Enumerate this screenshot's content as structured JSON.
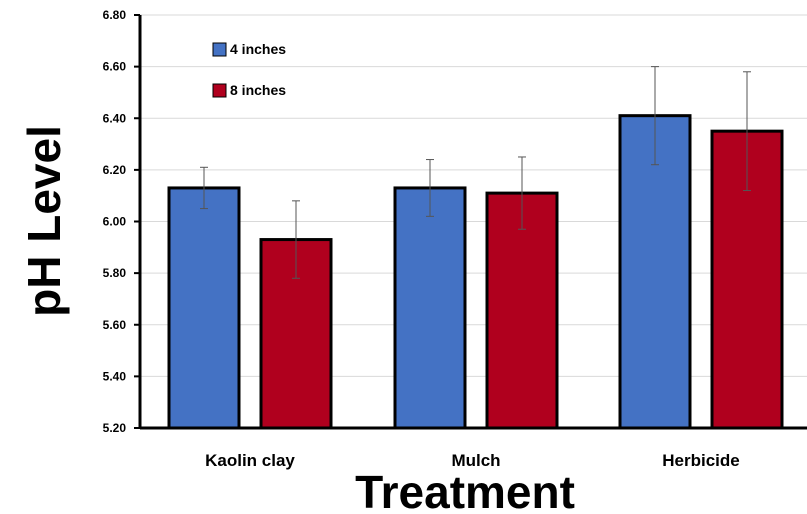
{
  "chart_data": {
    "type": "bar",
    "title": "",
    "xlabel": "Treatment",
    "ylabel": "pH Level",
    "ylim": [
      5.2,
      6.8
    ],
    "ytick_step": 0.2,
    "ytick_decimals": 2,
    "categories": [
      "Kaolin clay",
      "Mulch",
      "Herbicide"
    ],
    "series": [
      {
        "name": "4 inches",
        "color": "#4472c4",
        "values": [
          6.13,
          6.13,
          6.41
        ],
        "error": [
          0.08,
          0.11,
          0.19
        ]
      },
      {
        "name": "8 inches",
        "color": "#b0001e",
        "values": [
          5.93,
          6.11,
          6.35
        ],
        "error": [
          0.15,
          0.14,
          0.23
        ]
      }
    ],
    "grid": true,
    "legend_position": "top-left"
  }
}
